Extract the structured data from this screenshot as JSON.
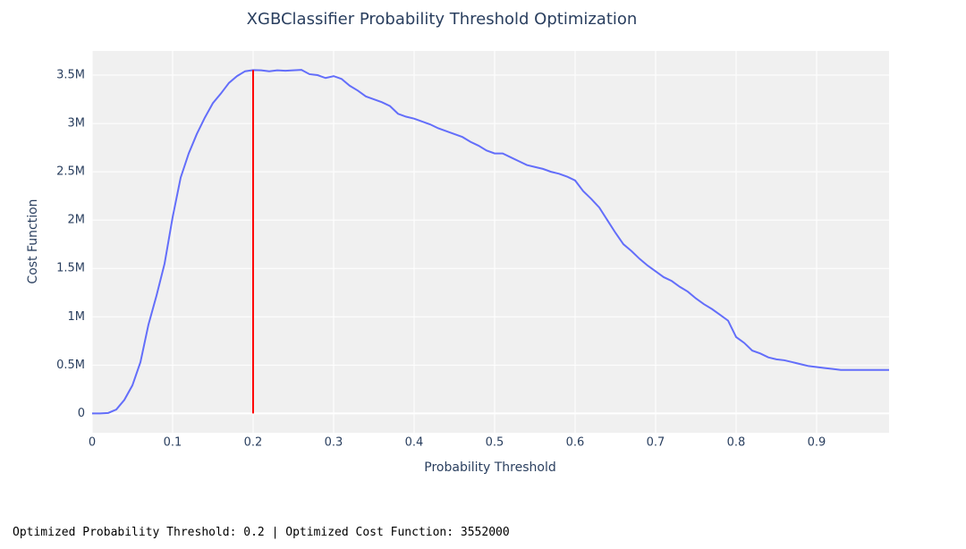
{
  "chart_data": {
    "type": "line",
    "title": "XGBClassifier Probability Threshold Optimization",
    "x_label": "Probability Threshold",
    "y_label": "Cost Function",
    "x": [
      0,
      0.01,
      0.02,
      0.03,
      0.04,
      0.05,
      0.06,
      0.07,
      0.08,
      0.09,
      0.1,
      0.11,
      0.12,
      0.13,
      0.14,
      0.15,
      0.16,
      0.17,
      0.18,
      0.19,
      0.2,
      0.21,
      0.22,
      0.23,
      0.24,
      0.25,
      0.26,
      0.27,
      0.28,
      0.29,
      0.3,
      0.31,
      0.32,
      0.33,
      0.34,
      0.35,
      0.36,
      0.37,
      0.38,
      0.39,
      0.4,
      0.41,
      0.42,
      0.43,
      0.44,
      0.45,
      0.46,
      0.47,
      0.48,
      0.49,
      0.5,
      0.51,
      0.52,
      0.53,
      0.54,
      0.55,
      0.56,
      0.57,
      0.58,
      0.59,
      0.6,
      0.61,
      0.62,
      0.63,
      0.64,
      0.65,
      0.66,
      0.67,
      0.68,
      0.69,
      0.7,
      0.71,
      0.72,
      0.73,
      0.74,
      0.75,
      0.76,
      0.77,
      0.78,
      0.79,
      0.8,
      0.81,
      0.82,
      0.83,
      0.84,
      0.85,
      0.86,
      0.87,
      0.88,
      0.89,
      0.9,
      0.91,
      0.92,
      0.93,
      0.94,
      0.95,
      0.96,
      0.97,
      0.98,
      0.99
    ],
    "series": [
      {
        "name": "Cost Function",
        "color": "#636efa",
        "values": [
          0,
          0,
          5000,
          40000,
          140000,
          290000,
          530000,
          920000,
          1220000,
          1550000,
          2030000,
          2440000,
          2690000,
          2890000,
          3060000,
          3210000,
          3310000,
          3420000,
          3490000,
          3540000,
          3552000,
          3550000,
          3540000,
          3550000,
          3545000,
          3550000,
          3555000,
          3510000,
          3500000,
          3470000,
          3490000,
          3460000,
          3390000,
          3340000,
          3280000,
          3250000,
          3220000,
          3180000,
          3100000,
          3070000,
          3050000,
          3020000,
          2990000,
          2950000,
          2920000,
          2890000,
          2860000,
          2810000,
          2770000,
          2720000,
          2690000,
          2690000,
          2650000,
          2610000,
          2570000,
          2550000,
          2530000,
          2500000,
          2480000,
          2450000,
          2410000,
          2300000,
          2220000,
          2130000,
          2000000,
          1870000,
          1750000,
          1680000,
          1600000,
          1530000,
          1470000,
          1410000,
          1370000,
          1310000,
          1260000,
          1190000,
          1130000,
          1080000,
          1020000,
          960000,
          790000,
          730000,
          650000,
          620000,
          580000,
          560000,
          550000,
          530000,
          510000,
          490000,
          480000,
          470000,
          460000,
          450000,
          450000,
          450000,
          450000,
          450000,
          450000,
          450000
        ]
      }
    ],
    "threshold_line": {
      "x": 0.2,
      "y": [
        0,
        3552000
      ],
      "color": "#ff0000"
    },
    "xlim": [
      0,
      0.99
    ],
    "ylim": [
      -200000,
      3750000
    ],
    "xticks": [
      0,
      0.1,
      0.2,
      0.3,
      0.4,
      0.5,
      0.6,
      0.7,
      0.8,
      0.9
    ],
    "yticks": [
      0,
      {
        "value": 500000,
        "label": "0.5M"
      },
      {
        "value": 1000000,
        "label": "1M"
      },
      {
        "value": 1500000,
        "label": "1.5M"
      },
      {
        "value": 2000000,
        "label": "2M"
      },
      {
        "value": 2500000,
        "label": "2.5M"
      },
      {
        "value": 3000000,
        "label": "3M"
      },
      {
        "value": 3500000,
        "label": "3.5M"
      }
    ],
    "grid": true,
    "footer": "Optimized Probability Threshold: 0.2 | Optimized Cost Function: 3552000"
  }
}
